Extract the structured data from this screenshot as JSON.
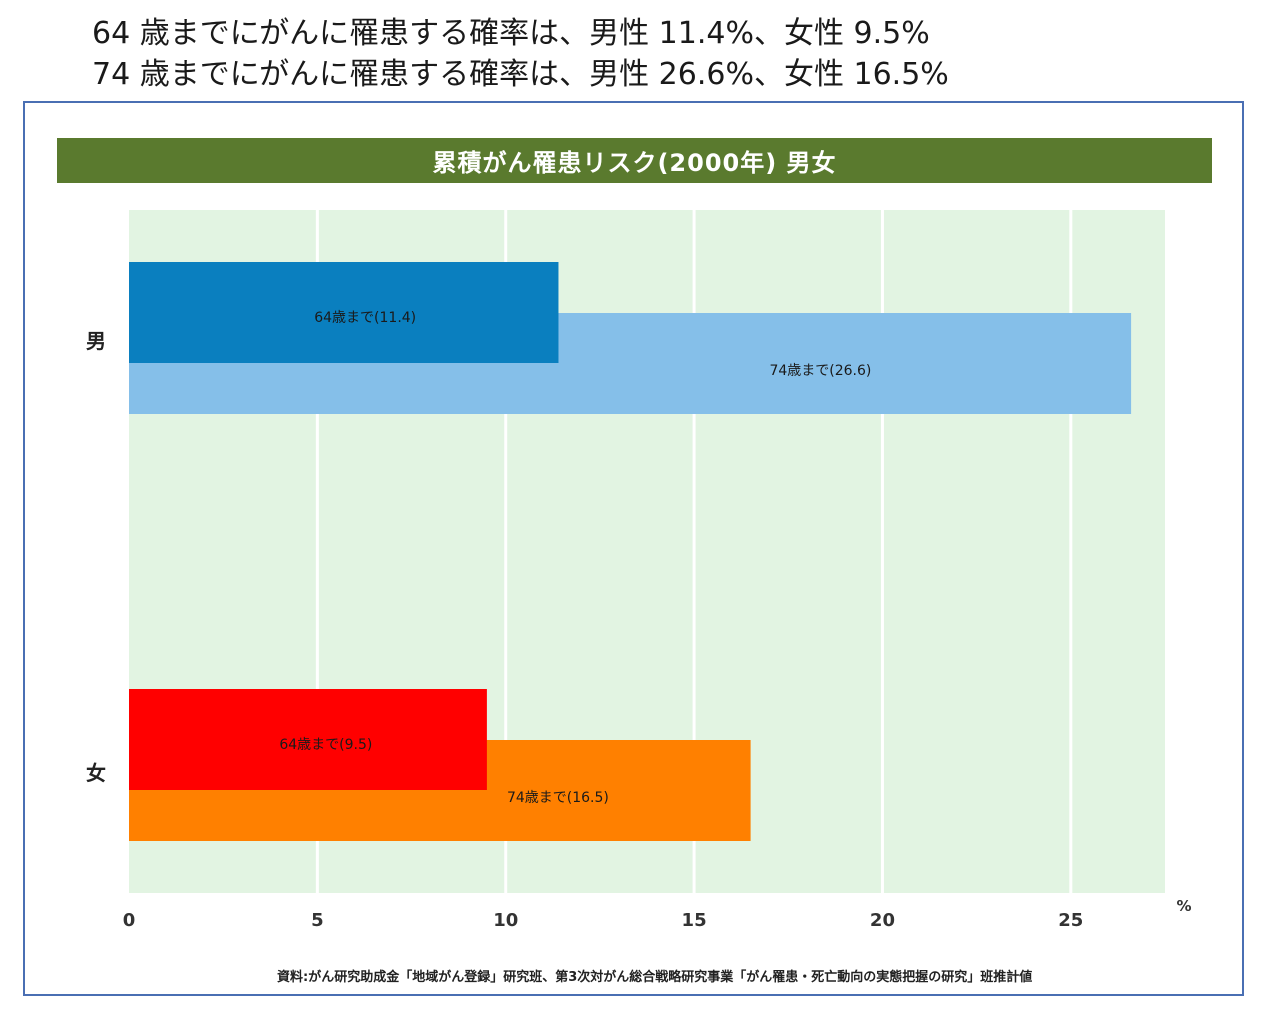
{
  "headline": {
    "line1": "64 歳までにがんに罹患する確率は、男性 11.4%、女性 9.5%",
    "line2": "74 歳までにがんに罹患する確率は、男性 26.6%、女性 16.5%"
  },
  "chart_data": {
    "type": "bar",
    "orientation": "horizontal",
    "title": "累積がん罹患リスク(2000年) 男女",
    "categories": [
      "男",
      "女"
    ],
    "series": [
      {
        "values": [
          11.4,
          9.5
        ],
        "labels": [
          "64歳まで(11.4)",
          "64歳まで(9.5)"
        ],
        "colors": [
          "#0a7fbf",
          "#ff0000"
        ]
      },
      {
        "values": [
          26.6,
          16.5
        ],
        "labels": [
          "74歳まで(26.6)",
          "74歳まで(16.5)"
        ],
        "colors": [
          "#85bfe9",
          "#ff8000"
        ]
      }
    ],
    "xlim": [
      0,
      27.5
    ],
    "xticks": [
      0,
      5,
      10,
      15,
      20,
      25
    ],
    "xunit": "%",
    "grid": true,
    "plot_background": "#e2f4e2",
    "source": "資料:がん研究助成金「地域がん登録」研究班、第3次対がん総合戦略研究事業「がん罹患・死亡動向の実態把握の研究」班推計値"
  }
}
